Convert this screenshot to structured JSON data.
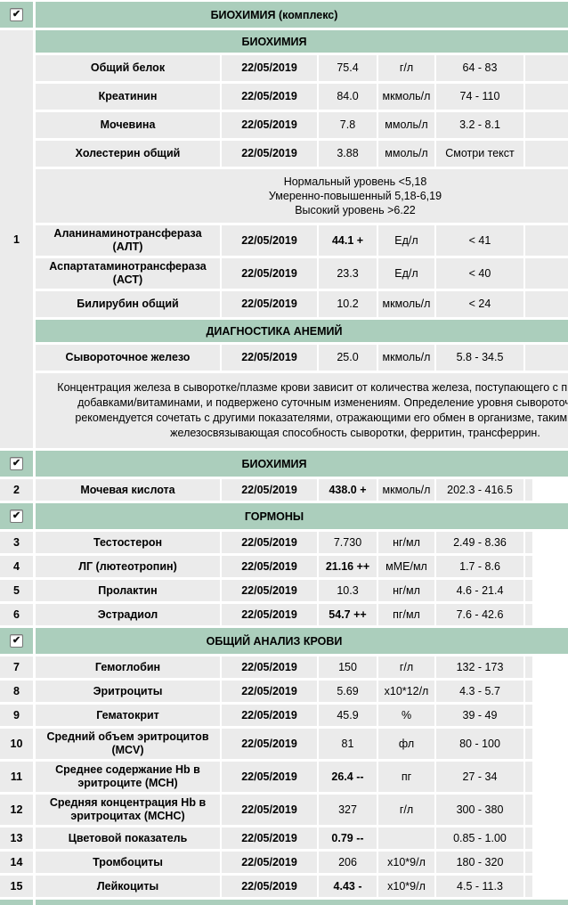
{
  "colors": {
    "header_green": "#abcebc",
    "row_gray": "#ebebeb",
    "gap_white": "#ffffff"
  },
  "icons": {
    "checkbox_checked": "✔"
  },
  "date_column_value": "22/05/2019",
  "sections": [
    {
      "title": "БИОХИМИЯ (комплекс)",
      "checked": true,
      "complex": {
        "number": "1",
        "blocks": [
          {
            "type": "subheader",
            "text": "БИОХИМИЯ"
          },
          {
            "type": "test",
            "name": "Общий белок",
            "date": "22/05/2019",
            "value": "75.4",
            "flagged": false,
            "units": "г/л",
            "ref": "64 - 83"
          },
          {
            "type": "test",
            "name": "Креатинин",
            "date": "22/05/2019",
            "value": "84.0",
            "flagged": false,
            "units": "мкмоль/л",
            "ref": "74 - 110"
          },
          {
            "type": "test",
            "name": "Мочевина",
            "date": "22/05/2019",
            "value": "7.8",
            "flagged": false,
            "units": "ммоль/л",
            "ref": "3.2 - 8.1"
          },
          {
            "type": "test",
            "name": "Холестерин общий",
            "date": "22/05/2019",
            "value": "3.88",
            "flagged": false,
            "units": "ммоль/л",
            "ref": "Смотри текст"
          },
          {
            "type": "note",
            "large": false,
            "text": "Нормальный уровень <5,18\nУмеренно-повышенный 5,18-6,19\nВысокий уровень >6.22"
          },
          {
            "type": "test",
            "name": "Аланинаминотрансфераза (АЛТ)",
            "date": "22/05/2019",
            "value": "44.1 +",
            "flagged": true,
            "units": "Ед/л",
            "ref": "< 41"
          },
          {
            "type": "test",
            "name": "Аспартатаминотрансфераза (АСТ)",
            "date": "22/05/2019",
            "value": "23.3",
            "flagged": false,
            "units": "Ед/л",
            "ref": "< 40"
          },
          {
            "type": "test",
            "name": "Билирубин общий",
            "date": "22/05/2019",
            "value": "10.2",
            "flagged": false,
            "units": "мкмоль/л",
            "ref": "< 24"
          },
          {
            "type": "subheader",
            "text": "ДИАГНОСТИКА АНЕМИЙ"
          },
          {
            "type": "test",
            "name": "Сывороточное железо",
            "date": "22/05/2019",
            "value": "25.0",
            "flagged": false,
            "units": "мкмоль/л",
            "ref": "5.8 - 34.5"
          },
          {
            "type": "note",
            "large": true,
            "text": "Концентрация железа в сыворотке/плазме крови зависит от количества железа, поступающего с пищей/пищевыми добавками/витаминами, и подвержено суточным изменениям. Определение уровня сывороточного железа рекомендуется сочетать с другими показателями, отражающими его обмен в организме, такими, как Общая железосвязывающая способность сыворотки, ферритин, трансферрин."
          }
        ]
      }
    },
    {
      "title": "БИОХИМИЯ",
      "checked": true,
      "rows": [
        {
          "num": "2",
          "name": "Мочевая кислота",
          "date": "22/05/2019",
          "value": "438.0 +",
          "flagged": true,
          "units": "мкмоль/л",
          "ref": "202.3 - 416.5"
        }
      ]
    },
    {
      "title": "ГОРМОНЫ",
      "checked": true,
      "rows": [
        {
          "num": "3",
          "name": "Тестостерон",
          "date": "22/05/2019",
          "value": "7.730",
          "flagged": false,
          "units": "нг/мл",
          "ref": "2.49 - 8.36"
        },
        {
          "num": "4",
          "name": "ЛГ (лютеотропин)",
          "date": "22/05/2019",
          "value": "21.16 ++",
          "flagged": true,
          "units": "мМЕ/мл",
          "ref": "1.7 - 8.6"
        },
        {
          "num": "5",
          "name": "Пролактин",
          "date": "22/05/2019",
          "value": "10.3",
          "flagged": false,
          "units": "нг/мл",
          "ref": "4.6 - 21.4"
        },
        {
          "num": "6",
          "name": "Эстрадиол",
          "date": "22/05/2019",
          "value": "54.7 ++",
          "flagged": true,
          "units": "пг/мл",
          "ref": "7.6 - 42.6"
        }
      ]
    },
    {
      "title": "ОБЩИЙ АНАЛИЗ КРОВИ",
      "checked": true,
      "rows": [
        {
          "num": "7",
          "name": "Гемоглобин",
          "date": "22/05/2019",
          "value": "150",
          "flagged": false,
          "units": "г/л",
          "ref": "132 - 173"
        },
        {
          "num": "8",
          "name": "Эритроциты",
          "date": "22/05/2019",
          "value": "5.69",
          "flagged": false,
          "units": "x10*12/л",
          "ref": "4.3 - 5.7"
        },
        {
          "num": "9",
          "name": "Гематокрит",
          "date": "22/05/2019",
          "value": "45.9",
          "flagged": false,
          "units": "%",
          "ref": "39 - 49"
        },
        {
          "num": "10",
          "name": "Средний объем эритроцитов (MCV)",
          "date": "22/05/2019",
          "value": "81",
          "flagged": false,
          "units": "фл",
          "ref": "80 - 100"
        },
        {
          "num": "11",
          "name": "Среднее содержание Hb в эритроците (MCH)",
          "date": "22/05/2019",
          "value": "26.4 --",
          "flagged": true,
          "units": "пг",
          "ref": "27 - 34"
        },
        {
          "num": "12",
          "name": "Средняя концентрация Hb в эритроцитах (MCHC)",
          "date": "22/05/2019",
          "value": "327",
          "flagged": false,
          "units": "г/л",
          "ref": "300 - 380"
        },
        {
          "num": "13",
          "name": "Цветовой показатель",
          "date": "22/05/2019",
          "value": "0.79 --",
          "flagged": true,
          "units": "",
          "ref": "0.85 - 1.00"
        },
        {
          "num": "14",
          "name": "Тромбоциты",
          "date": "22/05/2019",
          "value": "206",
          "flagged": false,
          "units": "x10*9/л",
          "ref": "180 - 320"
        },
        {
          "num": "15",
          "name": "Лейкоциты",
          "date": "22/05/2019",
          "value": "4.43 -",
          "flagged": true,
          "units": "x10*9/л",
          "ref": "4.5 - 11.3"
        }
      ]
    },
    {
      "title": "",
      "checked": false,
      "partial": true
    }
  ]
}
